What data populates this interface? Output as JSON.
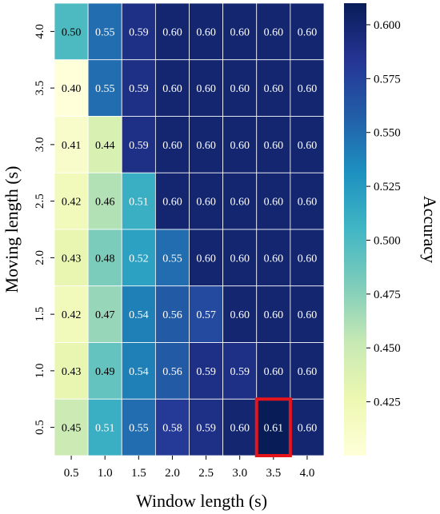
{
  "chart_data": {
    "type": "heatmap",
    "xlabel": "Window length (s)",
    "ylabel": "Moving length (s)",
    "x_categories": [
      "0.5",
      "1.0",
      "1.5",
      "2.0",
      "2.5",
      "3.0",
      "3.5",
      "4.0"
    ],
    "y_categories": [
      "4.0",
      "3.5",
      "3.0",
      "2.5",
      "2.0",
      "1.5",
      "1.0",
      "0.5"
    ],
    "values": [
      [
        0.5,
        0.55,
        0.59,
        0.6,
        0.6,
        0.6,
        0.6,
        0.6
      ],
      [
        0.4,
        0.55,
        0.59,
        0.6,
        0.6,
        0.6,
        0.6,
        0.6
      ],
      [
        0.41,
        0.44,
        0.59,
        0.6,
        0.6,
        0.6,
        0.6,
        0.6
      ],
      [
        0.42,
        0.46,
        0.51,
        0.6,
        0.6,
        0.6,
        0.6,
        0.6
      ],
      [
        0.43,
        0.48,
        0.52,
        0.55,
        0.6,
        0.6,
        0.6,
        0.6
      ],
      [
        0.42,
        0.47,
        0.54,
        0.56,
        0.57,
        0.6,
        0.6,
        0.6
      ],
      [
        0.43,
        0.49,
        0.54,
        0.56,
        0.59,
        0.59,
        0.6,
        0.6
      ],
      [
        0.45,
        0.51,
        0.55,
        0.58,
        0.59,
        0.6,
        0.61,
        0.6
      ]
    ],
    "colorbar": {
      "label": "Accuracy",
      "ticks": [
        "0.600",
        "0.575",
        "0.550",
        "0.525",
        "0.500",
        "0.475",
        "0.450",
        "0.425"
      ],
      "range": [
        0.4,
        0.61
      ],
      "colormap": "YlGnBu"
    },
    "highlight": {
      "row": 7,
      "col": 6,
      "color": "#e8141c"
    }
  }
}
